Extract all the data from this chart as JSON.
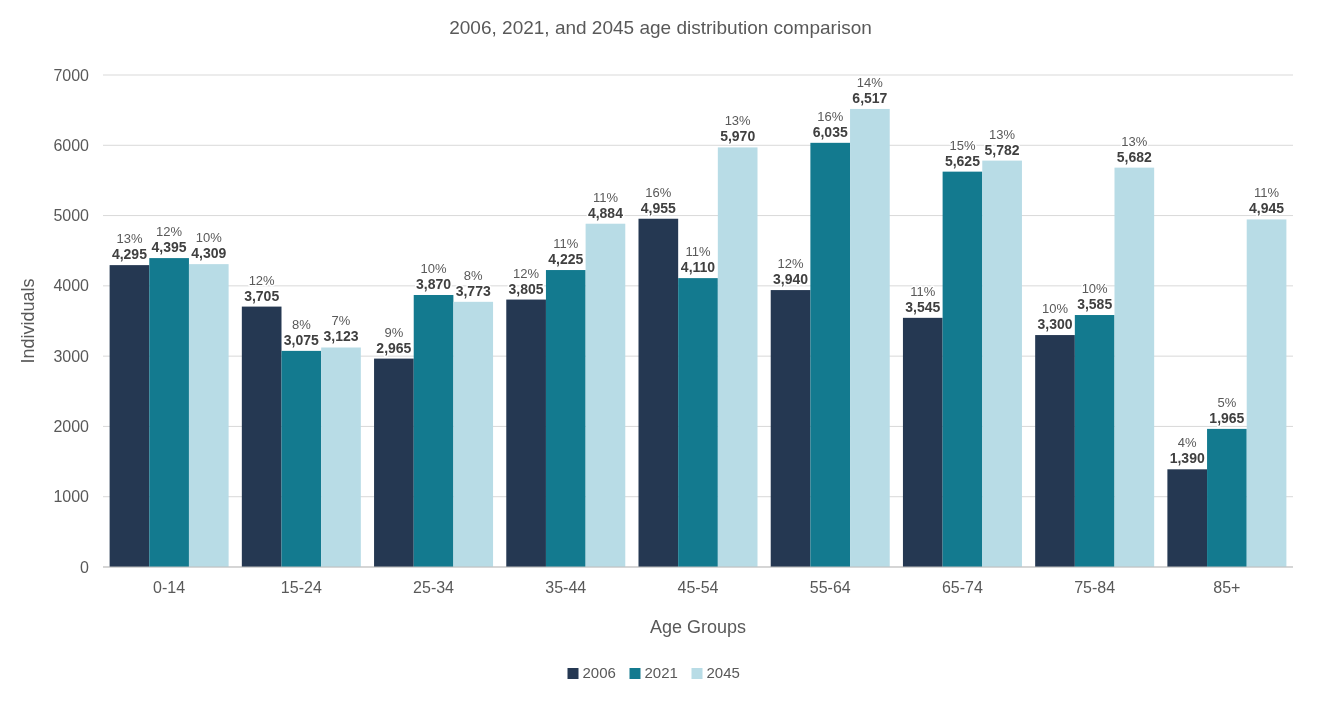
{
  "chart_data": {
    "type": "bar",
    "title": "2006, 2021, and 2045 age distribution comparison",
    "xlabel": "Age Groups",
    "ylabel": "Individuals",
    "categories": [
      "0-14",
      "15-24",
      "25-34",
      "35-44",
      "45-54",
      "55-64",
      "65-74",
      "75-84",
      "85+"
    ],
    "series": [
      {
        "name": "2006",
        "color": "#253852",
        "values": [
          4295,
          3705,
          2965,
          3805,
          4955,
          3940,
          3545,
          3300,
          1390
        ],
        "value_labels": [
          "4,295",
          "3,705",
          "2,965",
          "3,805",
          "4,955",
          "3,940",
          "3,545",
          "3,300",
          "1,390"
        ]
      },
      {
        "name": "2021",
        "color": "#137a8f",
        "values": [
          4395,
          3075,
          3870,
          4225,
          4110,
          6035,
          5625,
          3585,
          1965
        ],
        "value_labels": [
          "4,395",
          "3,075",
          "3,870",
          "4,225",
          "4,110",
          "6,035",
          "5,625",
          "3,585",
          "1,965"
        ]
      },
      {
        "name": "2045",
        "color": "#b8dce6",
        "values": [
          4309,
          3123,
          3773,
          4884,
          5970,
          6517,
          5782,
          5682,
          4945
        ],
        "value_labels": [
          "4,309",
          "3,123",
          "3,773",
          "4,884",
          "5,970",
          "6,517",
          "5,782",
          "5,682",
          "4,945"
        ]
      }
    ],
    "annotations": [
      "13%",
      "12%",
      "9%",
      "12%",
      "16%",
      "12%",
      "11%",
      "10%",
      "4%",
      "12%",
      "8%",
      "10%",
      "11%",
      "11%",
      "16%",
      "15%",
      "10%",
      "5%",
      "10%",
      "7%",
      "8%",
      "11%",
      "13%",
      "14%",
      "13%",
      "13%",
      "11%"
    ],
    "ylim": [
      0,
      7000
    ],
    "yticks": [
      0,
      1000,
      2000,
      3000,
      4000,
      5000,
      6000,
      7000
    ],
    "grid": "y",
    "legend": "bottom"
  }
}
